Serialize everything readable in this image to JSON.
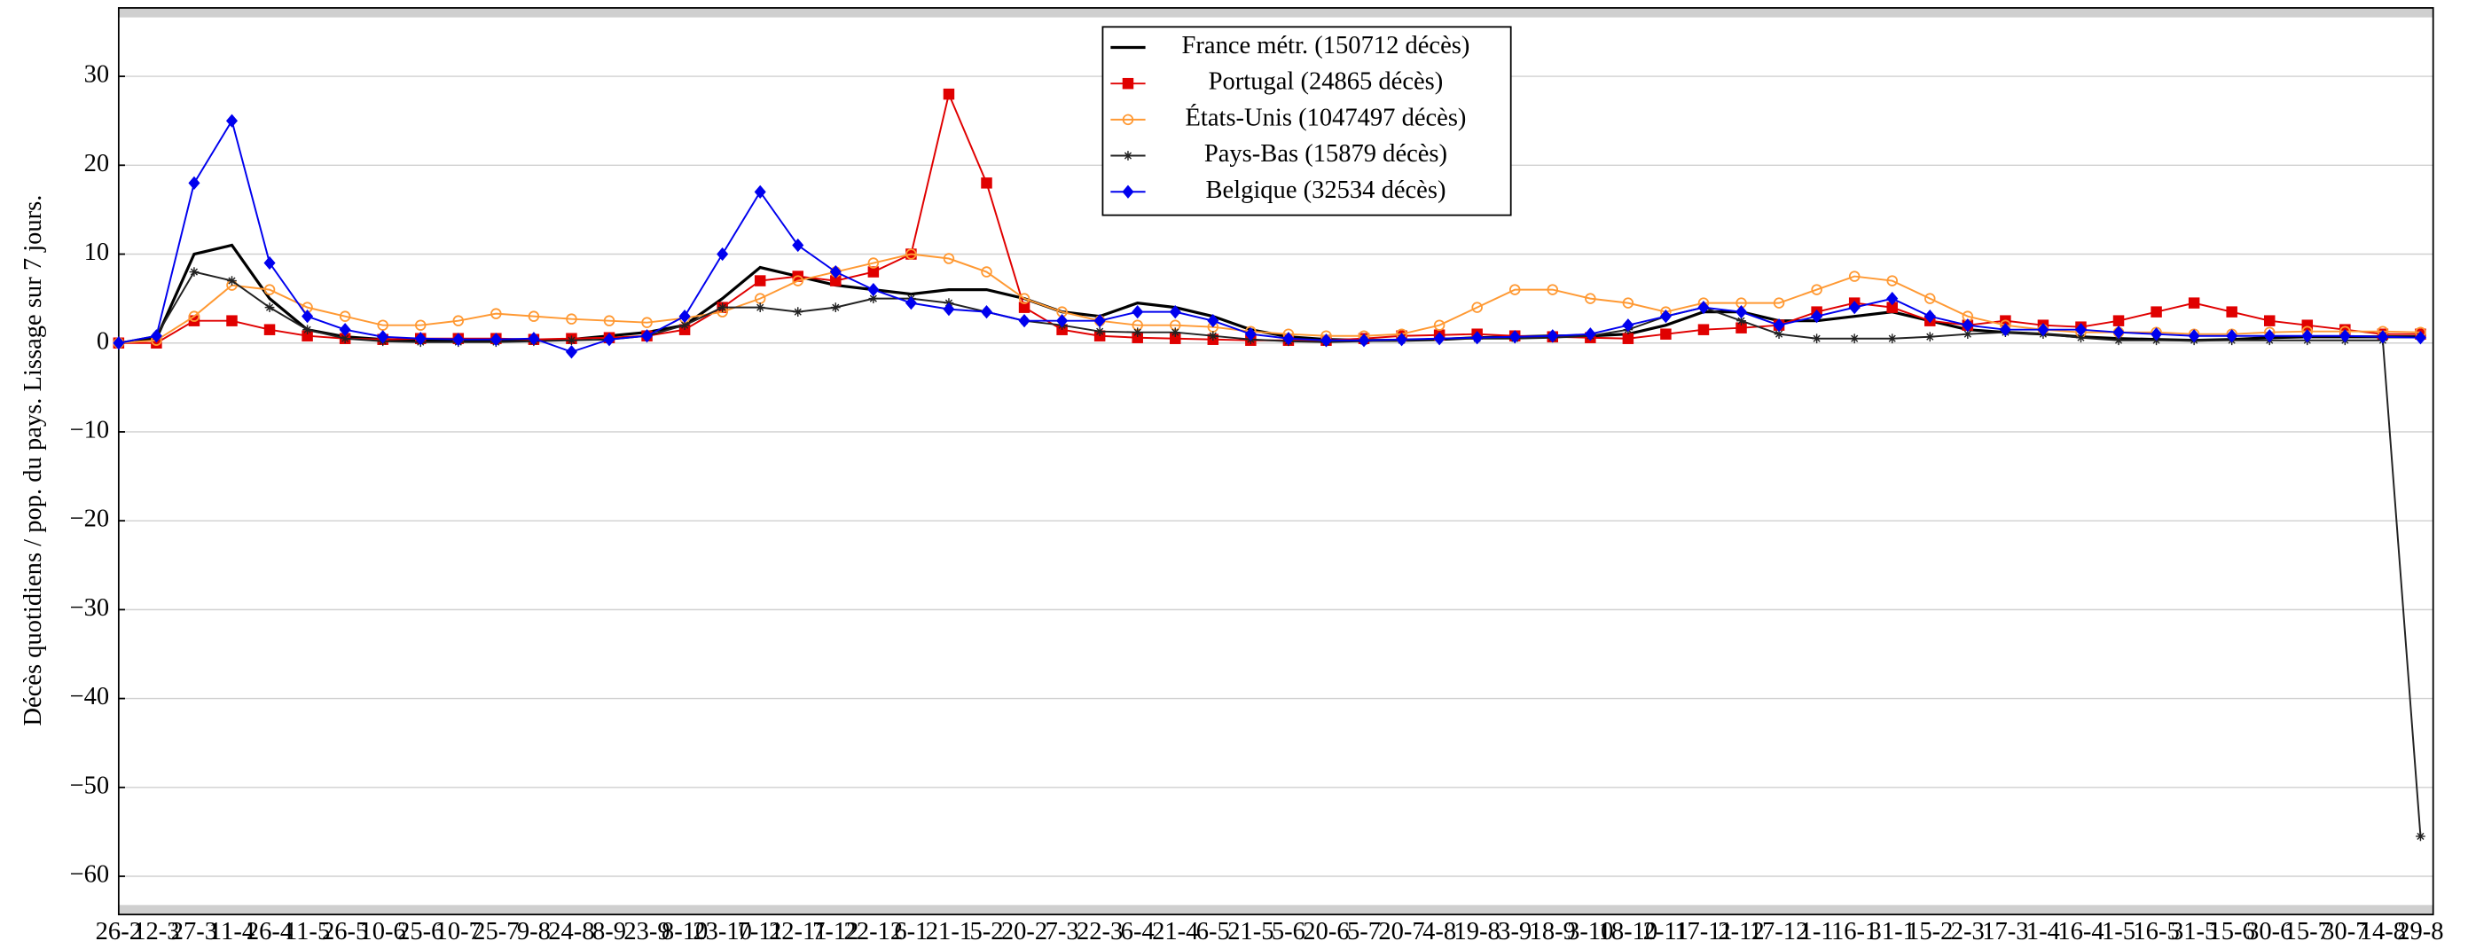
{
  "chart_data": {
    "type": "line",
    "ylabel": "Décès quotidiens / pop. du pays. Lissage sur 7 jours.",
    "categories": [
      "26-2",
      "12-3",
      "27-3",
      "11-4",
      "26-4",
      "11-5",
      "26-5",
      "10-6",
      "25-6",
      "10-7",
      "25-7",
      "9-8",
      "24-8",
      "8-9",
      "23-9",
      "8-10",
      "23-10",
      "7-11",
      "22-11",
      "7-12",
      "22-12",
      "6-1",
      "21-1",
      "5-2",
      "20-2",
      "7-3",
      "22-3",
      "6-4",
      "21-4",
      "6-5",
      "21-5",
      "5-6",
      "20-6",
      "5-7",
      "20-7",
      "4-8",
      "19-8",
      "3-9",
      "18-9",
      "3-10",
      "18-10",
      "2-11",
      "17-11",
      "2-12",
      "17-12",
      "1-1",
      "16-1",
      "31-1",
      "15-2",
      "2-3",
      "17-3",
      "1-4",
      "16-4",
      "1-5",
      "16-5",
      "31-5",
      "15-6",
      "30-6",
      "15-7",
      "30-7",
      "14-8",
      "29-8"
    ],
    "ylim": [
      -64.3,
      37.7
    ],
    "yticks": [
      {
        "value": -60,
        "label": "−60"
      },
      {
        "value": -50,
        "label": "−50"
      },
      {
        "value": -40,
        "label": "−40"
      },
      {
        "value": -30,
        "label": "−30"
      },
      {
        "value": -20,
        "label": "−20"
      },
      {
        "value": -10,
        "label": "−10"
      },
      0,
      10,
      20,
      30
    ],
    "grid": true,
    "legend": "top",
    "series": [
      {
        "name": "France métr. (150712 décès)",
        "color": "#000000",
        "marker": "none",
        "values": [
          0,
          0.5,
          10,
          11,
          5,
          1.5,
          0.7,
          0.4,
          0.3,
          0.3,
          0.3,
          0.3,
          0.4,
          0.8,
          1.2,
          2,
          5,
          8.5,
          7.5,
          6.5,
          6,
          5.5,
          6,
          6,
          5,
          3.5,
          3,
          4.5,
          4,
          3,
          1.5,
          0.7,
          0.4,
          0.3,
          0.3,
          0.4,
          0.6,
          0.7,
          0.8,
          0.8,
          1,
          2,
          3.5,
          3.5,
          2.5,
          2.5,
          3,
          3.5,
          2.5,
          1.5,
          1.2,
          1,
          0.7,
          0.5,
          0.4,
          0.3,
          0.4,
          0.6,
          0.7,
          0.7,
          0.7,
          0.7
        ]
      },
      {
        "name": "Portugal (24865 décès)",
        "color": "#e00000",
        "marker": "square",
        "values": [
          0,
          0,
          2.5,
          2.5,
          1.5,
          0.8,
          0.5,
          0.4,
          0.5,
          0.5,
          0.5,
          0.4,
          0.5,
          0.6,
          0.8,
          1.5,
          4,
          7,
          7.5,
          7,
          8,
          10,
          28,
          18,
          4,
          1.5,
          0.8,
          0.6,
          0.5,
          0.4,
          0.3,
          0.3,
          0.3,
          0.5,
          0.8,
          0.9,
          1,
          0.8,
          0.7,
          0.6,
          0.5,
          1,
          1.5,
          1.7,
          2,
          3.5,
          4.5,
          4,
          2.5,
          2,
          2.5,
          2,
          1.8,
          2.5,
          3.5,
          4.5,
          3.5,
          2.5,
          2,
          1.5,
          1,
          1
        ]
      },
      {
        "name": "États-Unis (1047497 décès)",
        "color": "#ff9933",
        "marker": "circle",
        "values": [
          0,
          0.3,
          3,
          6.5,
          6,
          4,
          3,
          2,
          2,
          2.5,
          3.3,
          3,
          2.7,
          2.5,
          2.3,
          2.8,
          3.5,
          5,
          7,
          8,
          9,
          10,
          9.5,
          8,
          5,
          3.5,
          2.5,
          2,
          2,
          1.8,
          1.3,
          1,
          0.8,
          0.8,
          1,
          2,
          4,
          6,
          6,
          5,
          4.5,
          3.5,
          4.5,
          4.5,
          4.5,
          6,
          7.5,
          7,
          5,
          3,
          2,
          1.5,
          1.2,
          1.2,
          1.2,
          1,
          1,
          1.2,
          1.3,
          1.3,
          1.3,
          1.2
        ]
      },
      {
        "name": "Pays-Bas (15879 décès)",
        "color": "#222222",
        "marker": "star",
        "values": [
          0,
          0.8,
          8,
          7,
          4,
          1.5,
          0.5,
          0.2,
          0.1,
          0.1,
          0.1,
          0.2,
          0.3,
          0.4,
          0.8,
          2,
          4,
          4,
          3.5,
          4,
          5,
          5,
          4.5,
          3.5,
          2.5,
          2,
          1.3,
          1.2,
          1.2,
          0.8,
          0.4,
          0.2,
          0.1,
          0.2,
          0.3,
          0.5,
          0.5,
          0.5,
          0.6,
          0.8,
          1.5,
          3,
          4,
          2.5,
          1,
          0.5,
          0.5,
          0.5,
          0.7,
          1,
          1.2,
          1,
          0.6,
          0.3,
          0.3,
          0.3,
          0.3,
          0.3,
          0.3,
          0.3,
          0.3,
          -55.5
        ]
      },
      {
        "name": "Belgique (32534 décès)",
        "color": "#0000ee",
        "marker": "diamond",
        "values": [
          0,
          0.8,
          18,
          25,
          9,
          3,
          1.5,
          0.7,
          0.5,
          0.4,
          0.4,
          0.5,
          -1,
          0.4,
          0.8,
          3,
          10,
          17,
          11,
          8,
          6,
          4.5,
          3.8,
          3.5,
          2.5,
          2.5,
          2.5,
          3.5,
          3.5,
          2.5,
          1,
          0.5,
          0.3,
          0.3,
          0.4,
          0.5,
          0.6,
          0.7,
          0.8,
          1,
          2,
          3,
          4,
          3.5,
          2,
          3,
          4,
          5,
          3,
          2,
          1.5,
          1.5,
          1.5,
          1.2,
          1,
          0.8,
          0.8,
          0.8,
          0.8,
          0.8,
          0.7,
          0.6
        ]
      }
    ]
  }
}
